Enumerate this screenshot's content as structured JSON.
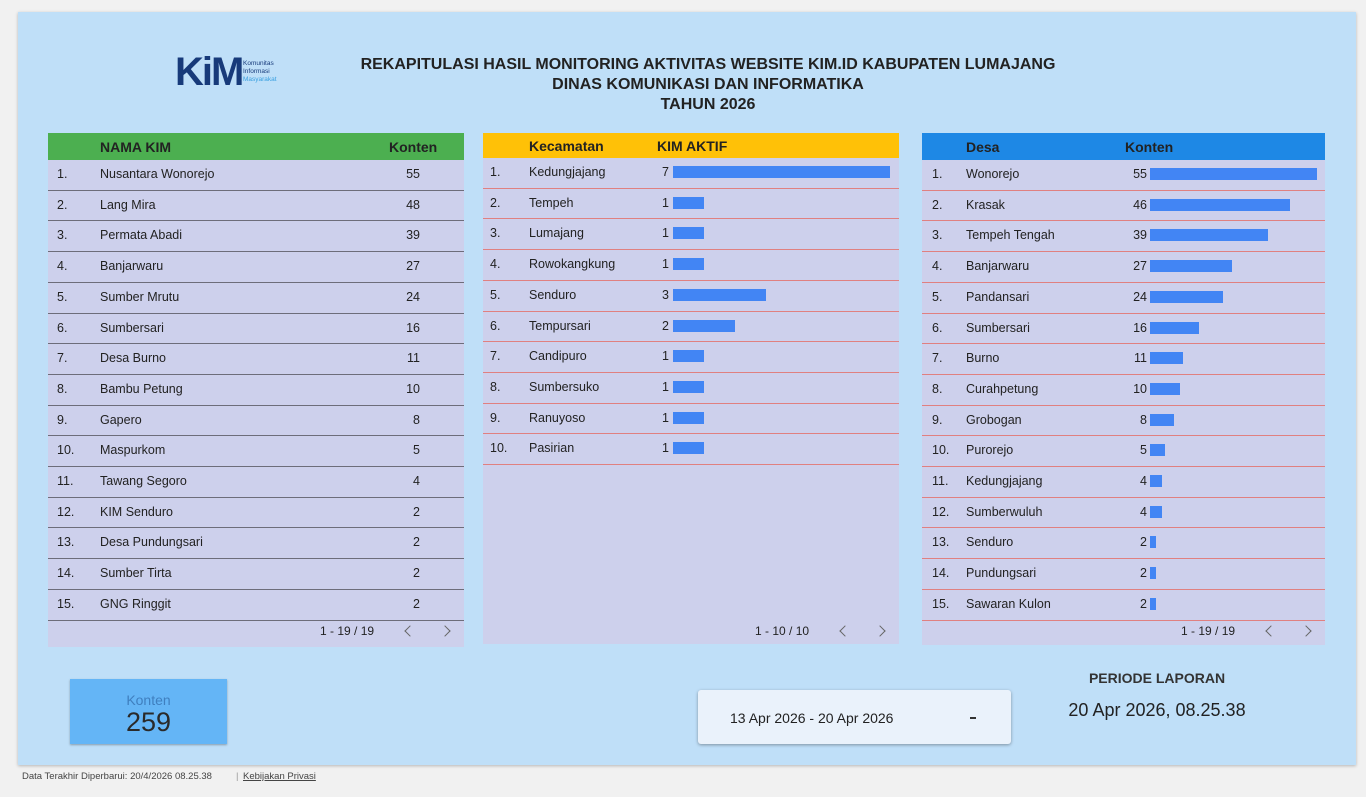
{
  "header": {
    "logo": {
      "mark": "KiM",
      "lines": [
        "Komunitas",
        "Informasi",
        "Masyarakat"
      ]
    },
    "title_lines": [
      "REKAPITULASI HASIL MONITORING AKTIVITAS WEBSITE KIM.ID KABUPATEN LUMAJANG",
      "DINAS KOMUNIKASI DAN INFORMATIKA",
      "TAHUN 2026"
    ]
  },
  "table_kim": {
    "columns": [
      "NAMA KIM",
      "Konten"
    ],
    "rows": [
      [
        "1.",
        "Nusantara Wonorejo",
        55
      ],
      [
        "2.",
        "Lang Mira",
        48
      ],
      [
        "3.",
        "Permata Abadi",
        39
      ],
      [
        "4.",
        "Banjarwaru",
        27
      ],
      [
        "5.",
        "Sumber Mrutu",
        24
      ],
      [
        "6.",
        "Sumbersari",
        16
      ],
      [
        "7.",
        "Desa Burno",
        11
      ],
      [
        "8.",
        "Bambu Petung",
        10
      ],
      [
        "9.",
        "Gapero",
        8
      ],
      [
        "10.",
        "Maspurkom",
        5
      ],
      [
        "11.",
        "Tawang Segoro",
        4
      ],
      [
        "12.",
        "KIM Senduro",
        2
      ],
      [
        "13.",
        "Desa Pundungsari",
        2
      ],
      [
        "14.",
        "Sumber Tirta",
        2
      ],
      [
        "15.",
        "GNG Ringgit",
        2
      ]
    ],
    "pagination": "1 - 19 / 19"
  },
  "table_kecamatan": {
    "columns": [
      "Kecamatan",
      "KIM AKTIF"
    ],
    "rows": [
      [
        "1.",
        "Kedungjajang",
        7
      ],
      [
        "2.",
        "Tempeh",
        1
      ],
      [
        "3.",
        "Lumajang",
        1
      ],
      [
        "4.",
        "Rowokangkung",
        1
      ],
      [
        "5.",
        "Senduro",
        3
      ],
      [
        "6.",
        "Tempursari",
        2
      ],
      [
        "7.",
        "Candipuro",
        1
      ],
      [
        "8.",
        "Sumbersuko",
        1
      ],
      [
        "9.",
        "Ranuyoso",
        1
      ],
      [
        "10.",
        "Pasirian",
        1
      ]
    ],
    "pagination": "1 - 10 / 10"
  },
  "table_desa": {
    "columns": [
      "Desa",
      "Konten"
    ],
    "rows": [
      [
        "1.",
        "Wonorejo",
        55
      ],
      [
        "2.",
        "Krasak",
        46
      ],
      [
        "3.",
        "Tempeh Tengah",
        39
      ],
      [
        "4.",
        "Banjarwaru",
        27
      ],
      [
        "5.",
        "Pandansari",
        24
      ],
      [
        "6.",
        "Sumbersari",
        16
      ],
      [
        "7.",
        "Burno",
        11
      ],
      [
        "8.",
        "Curahpetung",
        10
      ],
      [
        "9.",
        "Grobogan",
        8
      ],
      [
        "10.",
        "Purorejo",
        5
      ],
      [
        "11.",
        "Kedungjajang",
        4
      ],
      [
        "12.",
        "Sumberwuluh",
        4
      ],
      [
        "13.",
        "Senduro",
        2
      ],
      [
        "14.",
        "Pundungsari",
        2
      ],
      [
        "15.",
        "Sawaran Kulon",
        2
      ]
    ],
    "pagination": "1 - 19 / 19"
  },
  "scorecard": {
    "label": "Konten",
    "value": 259
  },
  "date_range": {
    "text": "13 Apr 2026 - 20 Apr 2026"
  },
  "period": {
    "label": "PERIODE LAPORAN",
    "value": "20 Apr 2026, 08.25.38"
  },
  "footer": {
    "updated": "Data Terakhir Diperbarui: 20/4/2026 08.25.38",
    "privacy": "Kebijakan Privasi"
  }
}
